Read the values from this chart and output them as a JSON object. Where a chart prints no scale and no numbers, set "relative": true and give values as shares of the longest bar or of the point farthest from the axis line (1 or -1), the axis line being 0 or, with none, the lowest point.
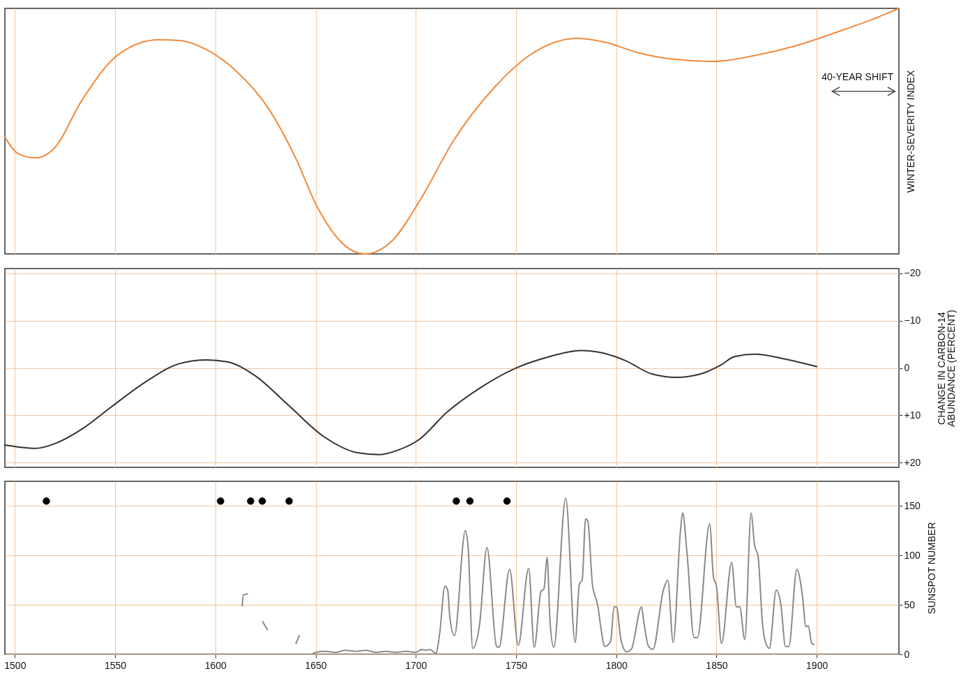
{
  "chart_data": [
    {
      "type": "line",
      "ylabel": "WINTER-SEVERITY INDEX",
      "relative": true,
      "xlim": [
        1495,
        1941
      ],
      "xticks": [
        1500,
        1550,
        1600,
        1650,
        1700,
        1750,
        1800,
        1850,
        1900
      ],
      "tick_labels": false,
      "grid": "x",
      "marker": "none",
      "line_style": "solid",
      "annotations": [
        "40-YEAR SHIFT"
      ],
      "x": [
        1495,
        1501.7,
        1510.3,
        1518.8,
        1534.2,
        1551.3,
        1571.8,
        1582.1,
        1595.7,
        1609.4,
        1626.5,
        1640.2,
        1650.4,
        1664.1,
        1674.4,
        1688,
        1701.7,
        1718.8,
        1739.3,
        1759.8,
        1780.3,
        1794,
        1811.1,
        1828.2,
        1848.7,
        1869.2,
        1889.7,
        1910.3,
        1930.8,
        1941
      ],
      "series": [
        {
          "color": "#f08a3c",
          "values": [
            0.475,
            0.408,
            0.391,
            0.423,
            0.636,
            0.81,
            0.872,
            0.869,
            0.831,
            0.752,
            0.592,
            0.388,
            0.198,
            0.038,
            0,
            0.052,
            0.213,
            0.461,
            0.679,
            0.825,
            0.878,
            0.863,
            0.819,
            0.793,
            0.784,
            0.808,
            0.848,
            0.904,
            0.965,
            1
          ]
        }
      ]
    },
    {
      "type": "line",
      "ylabel": "CHANGE IN CARBON-14\nABUNDANCE (PERCENT)",
      "xlim": [
        1495,
        1941
      ],
      "xticks": [
        1500,
        1550,
        1600,
        1650,
        1700,
        1750,
        1800,
        1850,
        1900
      ],
      "ylim": [
        21,
        -21
      ],
      "yticks": [
        {
          "value": -20,
          "label": "−20"
        },
        {
          "value": -10,
          "label": "−10"
        },
        0,
        {
          "value": 10,
          "label": "+10"
        },
        {
          "value": 20,
          "label": "+20"
        }
      ],
      "tick_labels": "y",
      "grid": true,
      "marker": "none",
      "line_style": "solid",
      "x": [
        1495,
        1510.3,
        1520.5,
        1534.2,
        1547.9,
        1565,
        1582,
        1595.7,
        1606,
        1619.7,
        1636.8,
        1653.8,
        1670.9,
        1681.9,
        1691.5,
        1701.7,
        1715.4,
        1732.5,
        1749.6,
        1766.7,
        1782.1,
        1794,
        1804.3,
        1818,
        1830,
        1841.9,
        1852.1,
        1859,
        1869.2,
        1882.9,
        1900
      ],
      "series": [
        {
          "color": "#333333",
          "values": [
            16.3,
            17,
            15.9,
            12.7,
            8.3,
            3,
            -0.9,
            -1.7,
            -1.3,
            1.6,
            8,
            14.4,
            17.9,
            18.3,
            17.3,
            15.1,
            9.4,
            4.1,
            0.1,
            -2.4,
            -3.7,
            -3.1,
            -1.6,
            1.3,
            2,
            1.3,
            -0.6,
            -2.4,
            -2.9,
            -2,
            -0.3
          ]
        }
      ]
    },
    {
      "type": "line",
      "ylabel": "SUNSPOT NUMBER",
      "xlim": [
        1495,
        1941
      ],
      "xticks": [
        1500,
        1550,
        1600,
        1650,
        1700,
        1750,
        1800,
        1850,
        1900
      ],
      "ylim": [
        0,
        175
      ],
      "yticks": [
        0,
        50,
        100,
        150
      ],
      "grid": true,
      "line_style": "solid",
      "series": [
        {
          "color": "#8a8a8a",
          "x": [
            1648,
            1650,
            1655,
            1660,
            1665,
            1670,
            1675,
            1680,
            1685,
            1690,
            1695,
            1700,
            1703,
            1705,
            1707,
            1710,
            1711.9,
            1714.5,
            1715.9,
            1717,
            1719.3,
            1724.7,
            1726.1,
            1728.4,
            1731.8,
            1735.5,
            1740.3,
            1741.5,
            1746.8,
            1751.1,
            1756.3,
            1759.1,
            1762.5,
            1763.9,
            1765.5,
            1767,
            1768.8,
            1774.8,
            1779.5,
            1781.6,
            1783,
            1784.7,
            1785.8,
            1788.1,
            1790.9,
            1792.1,
            1794.3,
            1797.2,
            1798.9,
            1800.1,
            1802.4,
            1805.2,
            1807.5,
            1812.6,
            1813.8,
            1816.1,
            1818.3,
            1823.5,
            1825.7,
            1828.4,
            1832,
            1833.1,
            1835.4,
            1838.8,
            1840.5,
            1846.6,
            1848.5,
            1850,
            1852.5,
            1857.6,
            1859.9,
            1861.6,
            1864.1,
            1867.3,
            1869,
            1870.7,
            1873,
            1874.1,
            1876.4,
            1879.8,
            1882.1,
            1884.4,
            1886.1,
            1890.1,
            1892.9,
            1894.6,
            1895.8,
            1897.5,
            1898.6
          ],
          "values": [
            0,
            2,
            3,
            2,
            4,
            3,
            4,
            2,
            3,
            2,
            3,
            2,
            5,
            4,
            5,
            1,
            21,
            69,
            65,
            37,
            19,
            125,
            108,
            6,
            30,
            108,
            8,
            7,
            86,
            9,
            87,
            7,
            64,
            66,
            98,
            32,
            7,
            158,
            12,
            71,
            75,
            137,
            135,
            71,
            48,
            30,
            8,
            13,
            48,
            48,
            14,
            2.5,
            5,
            48,
            32,
            8,
            5,
            65,
            75,
            12,
            124,
            143,
            100,
            17,
            17,
            132,
            78,
            69,
            11,
            93,
            48,
            48,
            15,
            143,
            110,
            100,
            30,
            15,
            6,
            65,
            51,
            8,
            8,
            86,
            59,
            28,
            29,
            11,
            10
          ]
        },
        {
          "color": "#8a8a8a",
          "x": [
            1613.4,
            1614,
            1616,
            1620,
            1623.6,
            1625.9,
            1630,
            1640.2,
            1641.9
          ],
          "values": [
            49,
            60,
            61,
            null,
            33,
            25,
            null,
            11,
            19
          ]
        },
        {
          "type": "scatter",
          "color": "#000000",
          "x": [
            1515.7,
            1602.6,
            1617.6,
            1623.4,
            1636.8,
            1720.2,
            1727,
            1745.5
          ],
          "values": [
            155,
            155,
            155,
            155,
            155,
            155,
            155,
            155
          ]
        }
      ]
    }
  ]
}
